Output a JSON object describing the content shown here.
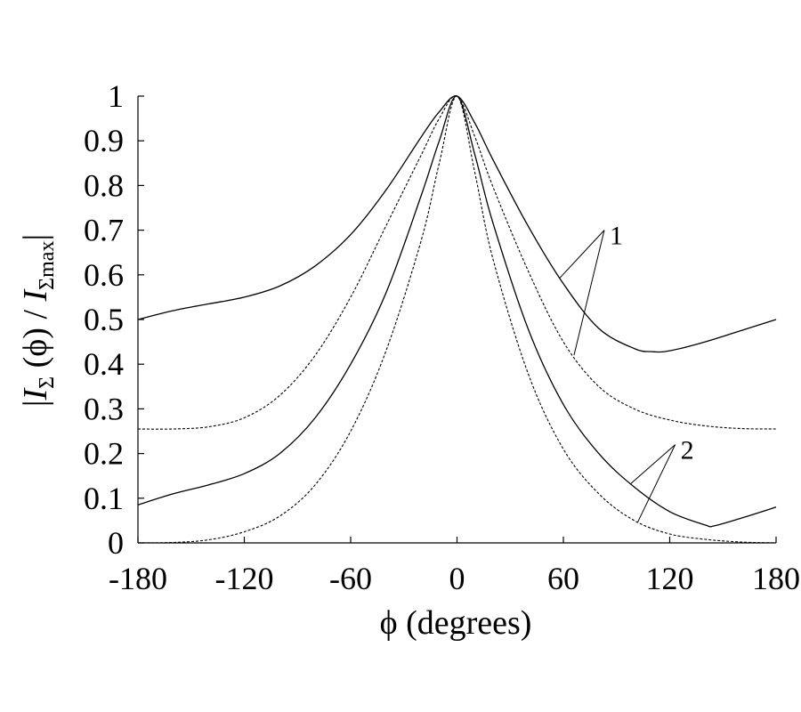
{
  "chart_data": {
    "type": "line",
    "title": "",
    "xlabel": "ϕ (degrees)",
    "ylabel_parts": {
      "abs_open": "|",
      "i1": "I",
      "s1": "Σ",
      "arg": " (ϕ) / ",
      "i2": "I",
      "s2": "Σmax",
      "abs_close": "|"
    },
    "xlim": [
      -180,
      180
    ],
    "ylim": [
      0,
      1
    ],
    "xticks": [
      -180,
      -120,
      -60,
      0,
      60,
      120,
      180
    ],
    "yticks": [
      0,
      0.1,
      0.2,
      0.3,
      0.4,
      0.5,
      0.6,
      0.7,
      0.8,
      0.9,
      1
    ],
    "ytick_labels": [
      "0",
      "0.1",
      "0.2",
      "0.3",
      "0.4",
      "0.5",
      "0.6",
      "0.7",
      "0.8",
      "0.9",
      "1"
    ],
    "grid": false,
    "annotations": [
      "1",
      "2"
    ],
    "series": [
      {
        "group": "1",
        "style": "solid",
        "x": [
          -180,
          -160,
          -140,
          -120,
          -100,
          -80,
          -60,
          -40,
          -20,
          -10,
          0,
          10,
          20,
          40,
          60,
          80,
          100,
          110,
          120,
          140,
          160,
          180
        ],
        "y": [
          0.5,
          0.52,
          0.535,
          0.55,
          0.575,
          0.62,
          0.69,
          0.79,
          0.91,
          0.965,
          1.0,
          0.94,
          0.86,
          0.71,
          0.58,
          0.48,
          0.435,
          0.428,
          0.43,
          0.45,
          0.475,
          0.5
        ]
      },
      {
        "group": "1",
        "style": "dashed",
        "x": [
          -180,
          -160,
          -140,
          -120,
          -100,
          -80,
          -60,
          -40,
          -20,
          -10,
          0,
          10,
          20,
          40,
          60,
          80,
          100,
          120,
          140,
          160,
          180
        ],
        "y": [
          0.255,
          0.255,
          0.26,
          0.28,
          0.33,
          0.42,
          0.55,
          0.71,
          0.87,
          0.95,
          1.0,
          0.91,
          0.8,
          0.61,
          0.45,
          0.35,
          0.3,
          0.275,
          0.262,
          0.256,
          0.255
        ]
      },
      {
        "group": "2",
        "style": "solid",
        "x": [
          -180,
          -160,
          -140,
          -120,
          -100,
          -80,
          -60,
          -40,
          -20,
          -10,
          0,
          10,
          20,
          40,
          60,
          80,
          100,
          120,
          140,
          145,
          160,
          180
        ],
        "y": [
          0.085,
          0.11,
          0.13,
          0.155,
          0.2,
          0.28,
          0.4,
          0.56,
          0.78,
          0.9,
          1.0,
          0.87,
          0.72,
          0.48,
          0.31,
          0.2,
          0.125,
          0.07,
          0.04,
          0.038,
          0.055,
          0.08
        ]
      },
      {
        "group": "2",
        "style": "dashed",
        "x": [
          -180,
          -160,
          -140,
          -120,
          -100,
          -80,
          -60,
          -40,
          -20,
          -10,
          0,
          10,
          20,
          40,
          60,
          80,
          100,
          120,
          140,
          160,
          180
        ],
        "y": [
          0.0,
          0.001,
          0.007,
          0.025,
          0.06,
          0.13,
          0.25,
          0.43,
          0.68,
          0.85,
          1.0,
          0.83,
          0.64,
          0.38,
          0.21,
          0.11,
          0.05,
          0.02,
          0.008,
          0.002,
          0.0
        ]
      }
    ]
  }
}
